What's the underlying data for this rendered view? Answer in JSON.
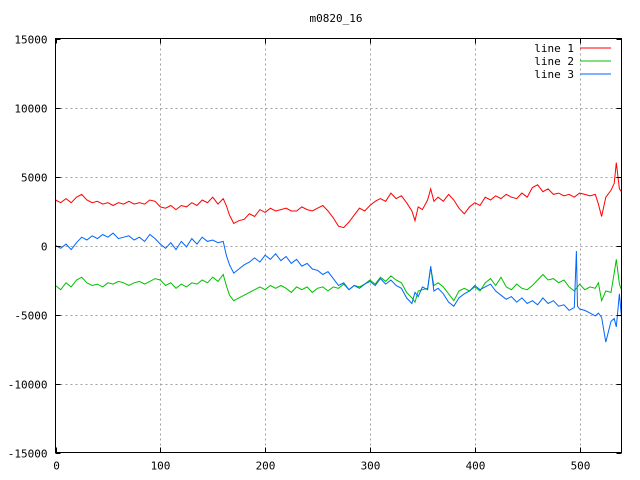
{
  "chart_data": {
    "type": "line",
    "title": "m0820_16",
    "xlabel": "",
    "ylabel": "",
    "xlim": [
      0,
      540
    ],
    "ylim": [
      -15000,
      15000
    ],
    "grid": true,
    "legend_position": "top-right",
    "xticks": [
      0,
      100,
      200,
      300,
      400,
      500
    ],
    "yticks": [
      -15000,
      -10000,
      -5000,
      0,
      5000,
      10000,
      15000
    ],
    "series": [
      {
        "name": "line 1",
        "color": "#ff0000",
        "x": [
          0,
          5,
          10,
          15,
          20,
          25,
          30,
          35,
          40,
          45,
          50,
          55,
          60,
          65,
          70,
          75,
          80,
          85,
          90,
          95,
          100,
          105,
          110,
          115,
          120,
          125,
          130,
          135,
          140,
          145,
          150,
          155,
          160,
          163,
          166,
          170,
          175,
          180,
          185,
          190,
          195,
          200,
          205,
          210,
          215,
          220,
          225,
          230,
          235,
          240,
          245,
          250,
          255,
          260,
          265,
          270,
          275,
          280,
          285,
          290,
          295,
          300,
          305,
          310,
          315,
          320,
          325,
          330,
          335,
          340,
          343,
          346,
          350,
          355,
          358,
          361,
          365,
          370,
          375,
          380,
          385,
          390,
          395,
          400,
          405,
          410,
          415,
          420,
          425,
          430,
          435,
          440,
          445,
          450,
          455,
          460,
          465,
          470,
          475,
          480,
          485,
          490,
          495,
          500,
          505,
          510,
          515,
          518,
          521,
          525,
          530,
          533,
          535,
          538,
          540
        ],
        "y": [
          3300,
          3100,
          3400,
          3100,
          3500,
          3700,
          3300,
          3100,
          3200,
          3000,
          3100,
          2900,
          3100,
          3000,
          3200,
          3000,
          3100,
          3000,
          3300,
          3200,
          2800,
          2700,
          2900,
          2600,
          2900,
          2800,
          3100,
          2900,
          3300,
          3100,
          3500,
          3000,
          3400,
          2900,
          2200,
          1600,
          1800,
          1900,
          2300,
          2100,
          2600,
          2400,
          2700,
          2500,
          2600,
          2700,
          2500,
          2500,
          2800,
          2600,
          2500,
          2700,
          2900,
          2500,
          2000,
          1400,
          1300,
          1700,
          2200,
          2700,
          2500,
          2900,
          3200,
          3400,
          3200,
          3800,
          3400,
          3600,
          3100,
          2500,
          1800,
          2800,
          2600,
          3300,
          4100,
          3200,
          3500,
          3200,
          3700,
          3300,
          2700,
          2300,
          2800,
          3100,
          2900,
          3500,
          3300,
          3600,
          3400,
          3700,
          3500,
          3400,
          3800,
          3500,
          4200,
          4400,
          3900,
          4100,
          3700,
          3800,
          3600,
          3700,
          3500,
          3800,
          3700,
          3600,
          3700,
          3000,
          2100,
          3500,
          4000,
          4500,
          6000,
          4100,
          3900
        ]
      },
      {
        "name": "line 2",
        "color": "#00c000",
        "x": [
          0,
          5,
          10,
          15,
          20,
          25,
          30,
          35,
          40,
          45,
          50,
          55,
          60,
          65,
          70,
          75,
          80,
          85,
          90,
          95,
          100,
          105,
          110,
          115,
          120,
          125,
          130,
          135,
          140,
          145,
          150,
          155,
          160,
          163,
          166,
          170,
          175,
          180,
          185,
          190,
          195,
          200,
          205,
          210,
          215,
          220,
          225,
          230,
          235,
          240,
          245,
          250,
          255,
          260,
          265,
          270,
          275,
          280,
          285,
          290,
          295,
          300,
          305,
          310,
          315,
          320,
          325,
          330,
          335,
          340,
          343,
          346,
          350,
          355,
          358,
          361,
          365,
          370,
          375,
          380,
          385,
          390,
          395,
          400,
          405,
          410,
          415,
          420,
          425,
          430,
          435,
          440,
          445,
          450,
          455,
          460,
          465,
          470,
          475,
          480,
          485,
          490,
          495,
          500,
          505,
          510,
          515,
          518,
          521,
          525,
          530,
          533,
          535,
          538,
          540
        ],
        "y": [
          -2900,
          -3200,
          -2700,
          -3000,
          -2500,
          -2300,
          -2700,
          -2900,
          -2800,
          -3000,
          -2700,
          -2800,
          -2600,
          -2700,
          -2900,
          -2700,
          -2600,
          -2800,
          -2600,
          -2400,
          -2500,
          -2900,
          -2700,
          -3100,
          -2800,
          -3000,
          -2700,
          -2800,
          -2500,
          -2700,
          -2300,
          -2600,
          -2100,
          -2900,
          -3600,
          -4000,
          -3800,
          -3600,
          -3400,
          -3200,
          -3000,
          -3200,
          -2900,
          -3100,
          -2900,
          -3100,
          -3400,
          -3000,
          -3200,
          -3000,
          -3400,
          -3100,
          -3000,
          -3300,
          -3000,
          -3100,
          -2800,
          -3200,
          -2900,
          -3000,
          -2800,
          -2500,
          -2800,
          -2300,
          -2600,
          -2200,
          -2500,
          -2700,
          -3400,
          -3800,
          -4100,
          -3300,
          -3200,
          -3100,
          -1600,
          -2900,
          -2700,
          -3000,
          -3500,
          -4000,
          -3300,
          -3100,
          -3300,
          -3000,
          -3300,
          -2700,
          -2400,
          -2900,
          -2300,
          -3000,
          -3200,
          -2800,
          -3100,
          -3200,
          -2900,
          -2500,
          -2100,
          -2500,
          -2400,
          -2700,
          -2500,
          -3000,
          -3300,
          -2800,
          -3200,
          -3000,
          -3100,
          -2700,
          -4000,
          -3300,
          -3400,
          -2000,
          -1000,
          -2800,
          -3200
        ]
      },
      {
        "name": "line 3",
        "color": "#0066ff",
        "x": [
          0,
          5,
          10,
          15,
          20,
          25,
          30,
          35,
          40,
          45,
          50,
          55,
          60,
          65,
          70,
          75,
          80,
          85,
          90,
          95,
          100,
          105,
          110,
          115,
          120,
          125,
          130,
          135,
          140,
          145,
          150,
          155,
          160,
          163,
          166,
          170,
          175,
          180,
          185,
          190,
          195,
          200,
          205,
          210,
          215,
          220,
          225,
          230,
          235,
          240,
          245,
          250,
          255,
          260,
          265,
          270,
          275,
          280,
          285,
          290,
          295,
          300,
          305,
          310,
          315,
          320,
          325,
          330,
          335,
          340,
          343,
          346,
          350,
          355,
          358,
          361,
          365,
          370,
          375,
          380,
          385,
          390,
          395,
          400,
          405,
          410,
          415,
          420,
          425,
          430,
          435,
          440,
          445,
          450,
          455,
          460,
          465,
          470,
          475,
          480,
          485,
          490,
          495,
          497,
          498,
          500,
          505,
          510,
          515,
          518,
          521,
          525,
          530,
          533,
          535,
          538,
          540
        ],
        "y": [
          0,
          -200,
          100,
          -300,
          200,
          600,
          400,
          700,
          500,
          800,
          600,
          900,
          500,
          600,
          700,
          400,
          600,
          300,
          800,
          500,
          100,
          -200,
          200,
          -300,
          300,
          -100,
          500,
          100,
          600,
          300,
          400,
          200,
          300,
          -700,
          -1400,
          -2000,
          -1700,
          -1400,
          -1200,
          -900,
          -1200,
          -700,
          -1000,
          -600,
          -1100,
          -800,
          -1300,
          -1000,
          -1500,
          -1300,
          -1700,
          -1800,
          -2100,
          -1900,
          -2400,
          -2900,
          -2700,
          -3200,
          -2900,
          -3100,
          -2800,
          -2600,
          -2900,
          -2400,
          -2800,
          -2500,
          -2900,
          -3100,
          -3800,
          -4200,
          -3400,
          -3700,
          -3000,
          -3200,
          -1500,
          -3300,
          -3100,
          -3500,
          -4100,
          -4400,
          -3800,
          -3500,
          -3300,
          -2900,
          -3200,
          -3000,
          -2800,
          -3300,
          -3600,
          -3900,
          -3700,
          -4100,
          -3800,
          -4200,
          -4000,
          -4300,
          -3800,
          -4200,
          -4000,
          -4400,
          -4300,
          -4700,
          -4500,
          -400,
          -4400,
          -4600,
          -4700,
          -4900,
          -5100,
          -4900,
          -5200,
          -7000,
          -5500,
          -5300,
          -5900,
          -3500,
          -5200
        ]
      }
    ]
  }
}
